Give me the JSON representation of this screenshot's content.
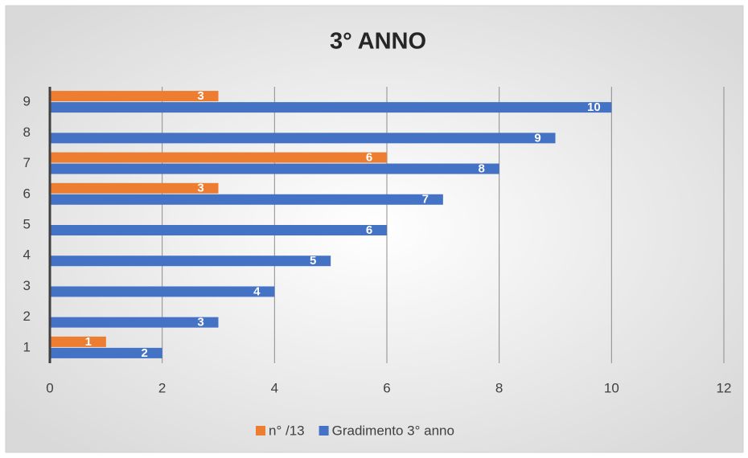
{
  "chart_data": {
    "type": "barh",
    "title": "3° ANNO",
    "categories": [
      "1",
      "2",
      "3",
      "4",
      "5",
      "6",
      "7",
      "8",
      "9"
    ],
    "series": [
      {
        "name": "n° /13",
        "color": "#ed7d31",
        "values": [
          1,
          null,
          null,
          null,
          null,
          3,
          6,
          null,
          3
        ]
      },
      {
        "name": "Gradimento 3° anno",
        "color": "#4472c4",
        "values": [
          2,
          3,
          4,
          5,
          6,
          7,
          8,
          9,
          10
        ]
      }
    ],
    "xlim": [
      0,
      12
    ],
    "xticks": [
      0,
      2,
      4,
      6,
      8,
      10,
      12
    ],
    "grid": true,
    "legend": "bottom"
  }
}
